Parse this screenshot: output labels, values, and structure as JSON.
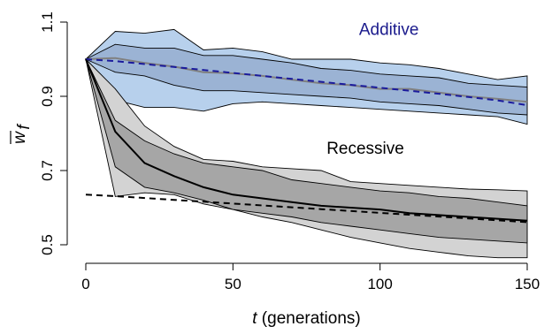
{
  "chart_data": {
    "type": "area",
    "xlabel": {
      "italic": "t",
      "rest": " (generations)"
    },
    "ylabel": {
      "main": "w",
      "overline": true,
      "subscript": "f"
    },
    "xlim": [
      0,
      150
    ],
    "ylim": [
      0.5,
      1.1
    ],
    "x_ticks": [
      0,
      50,
      100,
      150
    ],
    "x_tick_labels": [
      "0",
      "50",
      "100",
      "150"
    ],
    "y_ticks": [
      0.5,
      0.7,
      0.9,
      1.1
    ],
    "y_tick_labels": [
      "0.5",
      "0.7",
      "0.9",
      "1.1"
    ],
    "grid": false,
    "annotations": [
      {
        "text": "Additive",
        "x": 103,
        "y": 1.065,
        "color": "#1a1a8c"
      },
      {
        "text": "Recessive",
        "x": 95,
        "y": 0.745,
        "color": "#000000"
      }
    ],
    "colors": {
      "additive_outer": "#b7d0ec",
      "additive_inner": "#9bb3d4",
      "additive_mean": "#808080",
      "additive_dashed": "#1a1a9c",
      "recessive_outer": "#d3d3d3",
      "recessive_inner": "#a6a6a6",
      "recessive_mean": "#000000",
      "recessive_dashed": "#000000"
    },
    "x": [
      0,
      10,
      20,
      30,
      40,
      50,
      60,
      70,
      80,
      90,
      100,
      110,
      120,
      130,
      140,
      150
    ],
    "series": [
      {
        "group": "additive",
        "outer_upper": [
          1.0,
          1.075,
          1.07,
          1.08,
          1.025,
          1.03,
          1.02,
          1.0,
          1.0,
          1.0,
          0.99,
          0.985,
          0.975,
          0.96,
          0.945,
          0.955
        ],
        "outer_lower": [
          1.0,
          0.89,
          0.87,
          0.87,
          0.86,
          0.88,
          0.885,
          0.88,
          0.875,
          0.87,
          0.865,
          0.86,
          0.855,
          0.85,
          0.845,
          0.825
        ],
        "inner_upper": [
          1.0,
          1.04,
          1.03,
          1.03,
          1.01,
          1.01,
          1.0,
          0.99,
          0.975,
          0.97,
          0.96,
          0.955,
          0.95,
          0.935,
          0.93,
          0.925
        ],
        "inner_lower": [
          1.0,
          0.965,
          0.955,
          0.93,
          0.915,
          0.915,
          0.91,
          0.905,
          0.9,
          0.895,
          0.885,
          0.88,
          0.875,
          0.865,
          0.855,
          0.85
        ],
        "mean": [
          1.0,
          1.003,
          0.99,
          0.98,
          0.965,
          0.962,
          0.955,
          0.945,
          0.935,
          0.93,
          0.92,
          0.92,
          0.91,
          0.9,
          0.893,
          0.885
        ],
        "dashed": [
          1.0,
          0.995,
          0.987,
          0.979,
          0.971,
          0.963,
          0.955,
          0.947,
          0.939,
          0.931,
          0.923,
          0.915,
          0.907,
          0.898,
          0.889,
          0.876
        ]
      },
      {
        "group": "recessive",
        "outer_upper": [
          1.0,
          0.92,
          0.82,
          0.765,
          0.73,
          0.725,
          0.71,
          0.705,
          0.7,
          0.67,
          0.665,
          0.66,
          0.655,
          0.65,
          0.648,
          0.645
        ],
        "outer_lower": [
          1.0,
          0.63,
          0.64,
          0.635,
          0.61,
          0.595,
          0.575,
          0.56,
          0.54,
          0.52,
          0.505,
          0.49,
          0.48,
          0.47,
          0.465,
          0.465
        ],
        "inner_upper": [
          1.0,
          0.835,
          0.78,
          0.745,
          0.72,
          0.71,
          0.7,
          0.675,
          0.665,
          0.655,
          0.645,
          0.64,
          0.63,
          0.625,
          0.615,
          0.605
        ],
        "inner_lower": [
          1.0,
          0.71,
          0.655,
          0.64,
          0.62,
          0.595,
          0.585,
          0.575,
          0.56,
          0.55,
          0.54,
          0.53,
          0.52,
          0.515,
          0.51,
          0.505
        ],
        "mean": [
          1.0,
          0.805,
          0.72,
          0.685,
          0.655,
          0.635,
          0.625,
          0.615,
          0.605,
          0.6,
          0.595,
          0.585,
          0.58,
          0.575,
          0.57,
          0.565
        ],
        "dashed": [
          0.635,
          0.631,
          0.626,
          0.621,
          0.616,
          0.611,
          0.606,
          0.601,
          0.596,
          0.591,
          0.586,
          0.581,
          0.576,
          0.571,
          0.566,
          0.561
        ]
      }
    ]
  }
}
